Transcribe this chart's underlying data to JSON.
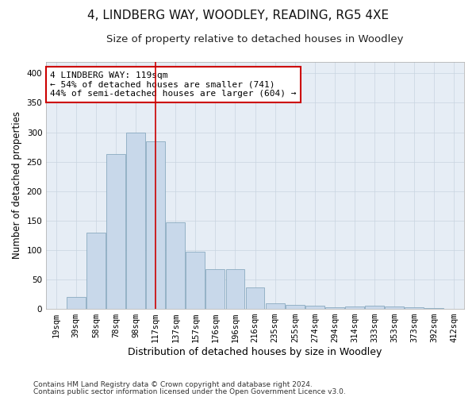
{
  "title": "4, LINDBERG WAY, WOODLEY, READING, RG5 4XE",
  "subtitle": "Size of property relative to detached houses in Woodley",
  "xlabel": "Distribution of detached houses by size in Woodley",
  "ylabel": "Number of detached properties",
  "footnote1": "Contains HM Land Registry data © Crown copyright and database right 2024.",
  "footnote2": "Contains public sector information licensed under the Open Government Licence v3.0.",
  "annotation_line1": "4 LINDBERG WAY: 119sqm",
  "annotation_line2": "← 54% of detached houses are smaller (741)",
  "annotation_line3": "44% of semi-detached houses are larger (604) →",
  "property_size_bin": 5,
  "bar_color": "#c8d8ea",
  "bar_edge_color": "#8aaac0",
  "vline_color": "#cc0000",
  "annotation_box_color": "#cc0000",
  "annotation_bg": "#ffffff",
  "grid_color": "#c8d4e0",
  "bg_color": "#e6edf5",
  "categories": [
    "19sqm",
    "39sqm",
    "58sqm",
    "78sqm",
    "98sqm",
    "117sqm",
    "137sqm",
    "157sqm",
    "176sqm",
    "196sqm",
    "216sqm",
    "235sqm",
    "255sqm",
    "274sqm",
    "294sqm",
    "314sqm",
    "333sqm",
    "353sqm",
    "373sqm",
    "392sqm",
    "412sqm"
  ],
  "values": [
    0,
    20,
    130,
    263,
    300,
    285,
    147,
    97,
    67,
    67,
    37,
    9,
    7,
    5,
    3,
    4,
    5,
    4,
    3,
    1,
    0
  ],
  "ylim": [
    0,
    420
  ],
  "yticks": [
    0,
    50,
    100,
    150,
    200,
    250,
    300,
    350,
    400
  ],
  "title_fontsize": 11,
  "subtitle_fontsize": 9.5,
  "ylabel_fontsize": 8.5,
  "xlabel_fontsize": 9,
  "tick_fontsize": 7.5,
  "annotation_fontsize": 8
}
